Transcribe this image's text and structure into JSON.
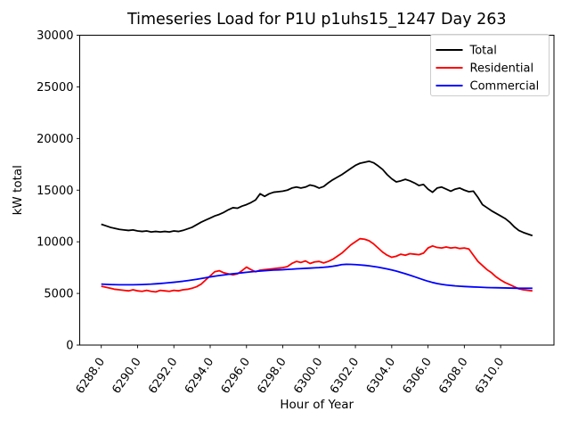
{
  "chart_data": {
    "type": "line",
    "title": "Timeseries Load for P1U p1uhs15_1247  Day 263",
    "xlabel": "Hour of Year",
    "ylabel": "kW total",
    "grid": false,
    "legend_position": "upper right",
    "ylim": [
      0,
      30000
    ],
    "yticks": [
      0,
      5000,
      10000,
      15000,
      20000,
      25000,
      30000
    ],
    "xticks": [
      6288,
      6290,
      6292,
      6294,
      6296,
      6298,
      6300,
      6302,
      6304,
      6306,
      6308,
      6310
    ],
    "x_tick_decimals": 1,
    "x": [
      6288.0,
      6288.25,
      6288.5,
      6288.75,
      6289.0,
      6289.25,
      6289.5,
      6289.75,
      6290.0,
      6290.25,
      6290.5,
      6290.75,
      6291.0,
      6291.25,
      6291.5,
      6291.75,
      6292.0,
      6292.25,
      6292.5,
      6292.75,
      6293.0,
      6293.25,
      6293.5,
      6293.75,
      6294.0,
      6294.25,
      6294.5,
      6294.75,
      6295.0,
      6295.25,
      6295.5,
      6295.75,
      6296.0,
      6296.25,
      6296.5,
      6296.75,
      6297.0,
      6297.25,
      6297.5,
      6297.75,
      6298.0,
      6298.25,
      6298.5,
      6298.75,
      6299.0,
      6299.25,
      6299.5,
      6299.75,
      6300.0,
      6300.25,
      6300.5,
      6300.75,
      6301.0,
      6301.25,
      6301.5,
      6301.75,
      6302.0,
      6302.25,
      6302.5,
      6302.75,
      6303.0,
      6303.25,
      6303.5,
      6303.75,
      6304.0,
      6304.25,
      6304.5,
      6304.75,
      6305.0,
      6305.25,
      6305.5,
      6305.75,
      6306.0,
      6306.25,
      6306.5,
      6306.75,
      6307.0,
      6307.25,
      6307.5,
      6307.75,
      6308.0,
      6308.25,
      6308.5,
      6308.75,
      6309.0,
      6309.25,
      6309.5,
      6309.75,
      6310.0,
      6310.25,
      6310.5,
      6310.75,
      6311.0,
      6311.25,
      6311.5,
      6311.75
    ],
    "series": [
      {
        "name": "Total",
        "color": "#000000",
        "values": [
          11700,
          11550,
          11400,
          11300,
          11200,
          11150,
          11100,
          11150,
          11050,
          11000,
          11050,
          10950,
          11000,
          10950,
          11000,
          10950,
          11050,
          11000,
          11100,
          11250,
          11400,
          11650,
          11900,
          12100,
          12300,
          12500,
          12650,
          12850,
          13100,
          13300,
          13250,
          13450,
          13600,
          13800,
          14050,
          14650,
          14400,
          14650,
          14800,
          14850,
          14900,
          15000,
          15200,
          15300,
          15200,
          15300,
          15500,
          15400,
          15200,
          15350,
          15700,
          16000,
          16250,
          16500,
          16800,
          17100,
          17400,
          17600,
          17700,
          17800,
          17650,
          17350,
          17000,
          16500,
          16100,
          15800,
          15900,
          16050,
          15900,
          15700,
          15450,
          15550,
          15100,
          14800,
          15200,
          15300,
          15100,
          14900,
          15100,
          15200,
          15000,
          14850,
          14900,
          14300,
          13600,
          13300,
          13000,
          12750,
          12500,
          12250,
          11900,
          11450,
          11100,
          10900,
          10750,
          10600
        ]
      },
      {
        "name": "Residential",
        "color": "#ff0000",
        "values": [
          5700,
          5600,
          5500,
          5400,
          5350,
          5300,
          5250,
          5350,
          5250,
          5200,
          5300,
          5200,
          5150,
          5300,
          5250,
          5200,
          5300,
          5250,
          5350,
          5400,
          5500,
          5650,
          5900,
          6300,
          6700,
          7100,
          7200,
          7000,
          6900,
          6800,
          6900,
          7200,
          7550,
          7300,
          7100,
          7250,
          7300,
          7350,
          7400,
          7450,
          7500,
          7600,
          7900,
          8100,
          8000,
          8150,
          7900,
          8050,
          8100,
          7950,
          8100,
          8300,
          8600,
          8900,
          9300,
          9700,
          10000,
          10300,
          10250,
          10100,
          9800,
          9400,
          9000,
          8700,
          8500,
          8600,
          8800,
          8700,
          8850,
          8800,
          8750,
          8900,
          9400,
          9600,
          9450,
          9400,
          9500,
          9400,
          9450,
          9350,
          9400,
          9300,
          8700,
          8100,
          7700,
          7300,
          7000,
          6600,
          6300,
          6050,
          5850,
          5650,
          5450,
          5350,
          5300,
          5250
        ]
      },
      {
        "name": "Commercial",
        "color": "#0000ff",
        "values": [
          5900,
          5880,
          5860,
          5850,
          5840,
          5840,
          5840,
          5840,
          5850,
          5860,
          5880,
          5900,
          5930,
          5960,
          6000,
          6040,
          6080,
          6130,
          6180,
          6240,
          6300,
          6370,
          6440,
          6520,
          6600,
          6670,
          6730,
          6790,
          6850,
          6900,
          6950,
          7000,
          7050,
          7090,
          7130,
          7170,
          7200,
          7230,
          7260,
          7280,
          7300,
          7330,
          7350,
          7380,
          7400,
          7430,
          7450,
          7480,
          7500,
          7530,
          7570,
          7630,
          7700,
          7790,
          7820,
          7810,
          7790,
          7760,
          7720,
          7670,
          7610,
          7540,
          7460,
          7370,
          7270,
          7160,
          7040,
          6910,
          6770,
          6620,
          6470,
          6320,
          6180,
          6060,
          5960,
          5880,
          5820,
          5770,
          5730,
          5700,
          5670,
          5650,
          5630,
          5610,
          5590,
          5570,
          5560,
          5550,
          5540,
          5530,
          5520,
          5510,
          5500,
          5500,
          5500,
          5500
        ]
      }
    ]
  }
}
